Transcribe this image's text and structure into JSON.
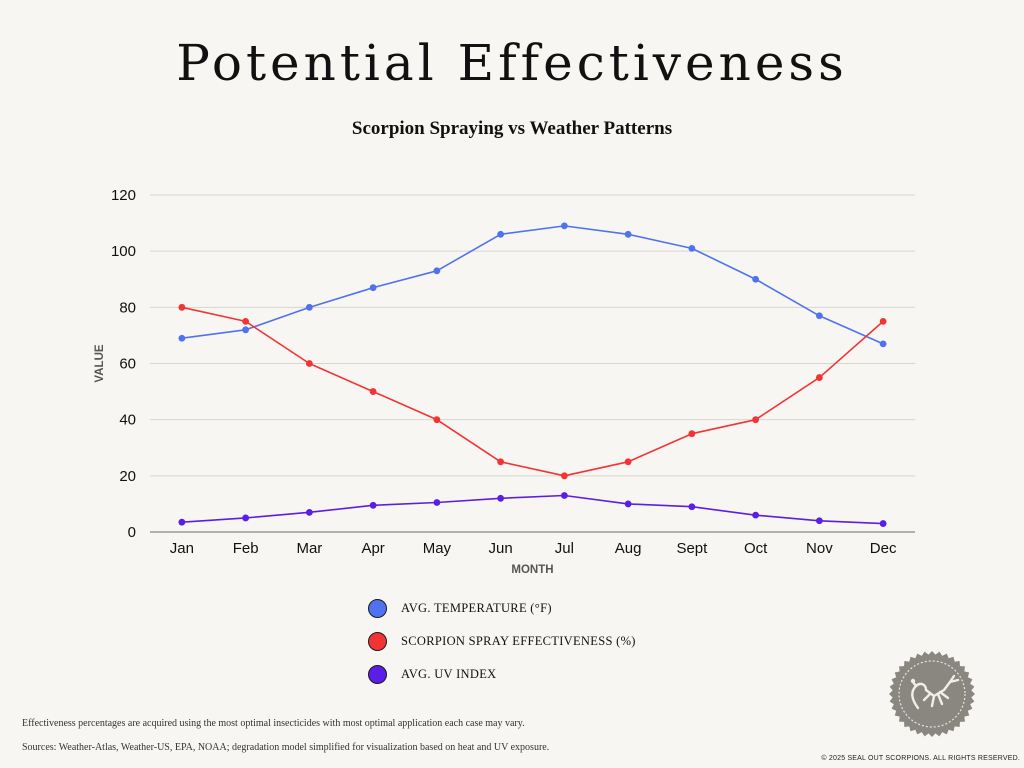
{
  "title": "Potential Effectiveness",
  "subtitle": "Scorpion Spraying vs Weather Patterns",
  "chart_data": {
    "type": "line",
    "xlabel": "MONTH",
    "ylabel": "VALUE",
    "ylim": [
      0,
      120
    ],
    "yticks": [
      0,
      20,
      40,
      60,
      80,
      100,
      120
    ],
    "grid": true,
    "legend_position": "bottom",
    "categories": [
      "Jan",
      "Feb",
      "Mar",
      "Apr",
      "May",
      "Jun",
      "Jul",
      "Aug",
      "Sept",
      "Oct",
      "Nov",
      "Dec"
    ],
    "series": [
      {
        "name": "AVG. TEMPERATURE (°F)",
        "color": "#4f73f0",
        "values": [
          69,
          72,
          80,
          87,
          93,
          106,
          109,
          106,
          101,
          90,
          77,
          67
        ]
      },
      {
        "name": "SCORPION SPRAY EFFECTIVENESS (%)",
        "color": "#f23434",
        "values": [
          80,
          75,
          60,
          50,
          40,
          25,
          20,
          25,
          35,
          40,
          55,
          75
        ]
      },
      {
        "name": "AVG. UV INDEX",
        "color": "#5a1ee6",
        "values": [
          3.5,
          5,
          7,
          9.5,
          10.5,
          12,
          13,
          10,
          9,
          6,
          4,
          3
        ]
      }
    ]
  },
  "notes": {
    "effectiveness": "Effectiveness percentages are acquired using the most optimal insecticides with most optimal application each case may vary.",
    "sources": "Sources: Weather-Atlas, Weather-US, EPA, NOAA; degradation model simplified for visualization based on heat and UV exposure."
  },
  "copyright": "© 2025 SEAL OUT SCORPIONS. ALL RIGHTS RESERVED.",
  "logo": {
    "icon": "scorpion-seal-icon",
    "color": "#8a8781"
  }
}
